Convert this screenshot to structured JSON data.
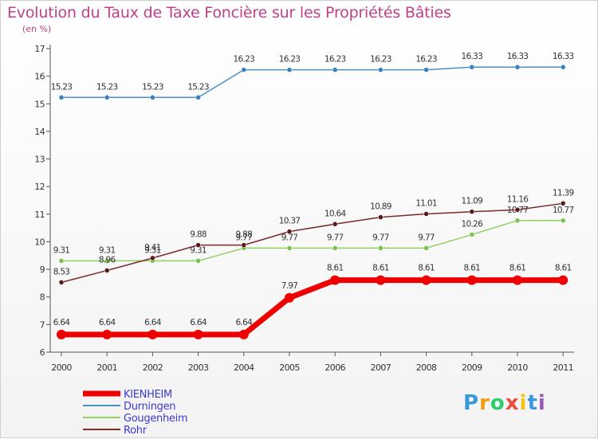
{
  "header": {
    "title": "Evolution du Taux de Taxe Foncière sur les Propriétés Bâties",
    "unit": "(en %)"
  },
  "chart_data": {
    "type": "line",
    "title": "Evolution du Taux de Taxe Foncière sur les Propriétés Bâties",
    "ylabel": "(en %)",
    "xlabel": "",
    "ylim": [
      6,
      17
    ],
    "yticks": [
      6,
      7,
      8,
      9,
      10,
      11,
      12,
      13,
      14,
      15,
      16,
      17
    ],
    "x": [
      2000,
      2001,
      2002,
      2003,
      2004,
      2005,
      2006,
      2007,
      2008,
      2009,
      2010,
      2011
    ],
    "series": [
      {
        "name": "Durningen",
        "color": "#4a90c8",
        "marker": "#3a7fbf",
        "values": [
          15.23,
          15.23,
          15.23,
          15.23,
          16.23,
          16.23,
          16.23,
          16.23,
          16.23,
          16.33,
          16.33,
          16.33
        ],
        "labels": [
          "15.23",
          "15.23",
          "15.23",
          "15.23",
          "16.23",
          "16.23",
          "16.23",
          "16.23",
          "16.23",
          "16.33",
          "16.33",
          "16.33"
        ]
      },
      {
        "name": "Gougenheim",
        "color": "#90d060",
        "marker": "#7cc050",
        "values": [
          9.31,
          9.31,
          9.31,
          9.31,
          9.77,
          9.77,
          9.77,
          9.77,
          9.77,
          10.26,
          10.77,
          10.77
        ],
        "labels": [
          "9.31",
          "9.31",
          "9.31",
          "9.31",
          "9.77",
          "9.77",
          "9.77",
          "9.77",
          "9.77",
          "10.26",
          "10.77",
          "10.77"
        ]
      },
      {
        "name": "Rohr",
        "color": "#7a2a2a",
        "marker": "#5e1a1a",
        "values": [
          8.53,
          8.96,
          9.41,
          9.88,
          9.88,
          10.37,
          10.64,
          10.89,
          11.01,
          11.09,
          11.16,
          11.39
        ],
        "labels": [
          "8.53",
          "8.96",
          "9.41",
          "9.88",
          "9.88",
          "10.37",
          "10.64",
          "10.89",
          "11.01",
          "11.09",
          "11.16",
          "11.39"
        ]
      },
      {
        "name": "KIENHEIM",
        "color": "#ee0000",
        "marker": "#ee0000",
        "values": [
          6.64,
          6.64,
          6.64,
          6.64,
          6.64,
          7.97,
          8.61,
          8.61,
          8.61,
          8.61,
          8.61,
          8.61
        ],
        "labels": [
          "6.64",
          "6.64",
          "6.64",
          "6.64",
          "6.64",
          "7.97",
          "8.61",
          "8.61",
          "8.61",
          "8.61",
          "8.61",
          "8.61"
        ]
      }
    ],
    "legend": [
      "KIENHEIM",
      "Durningen",
      "Gougenheim",
      "Rohr"
    ],
    "legend_position": "bottom-left",
    "grid": false
  },
  "branding": {
    "logo_letters": [
      "P",
      "r",
      "o",
      "x",
      "i",
      "t",
      "i"
    ],
    "logo_colors": [
      "#3a9ad9",
      "#f39c12",
      "#2ecc71",
      "#e74c3c",
      "#f1c40f",
      "#3a9ad9",
      "#9b59b6"
    ]
  }
}
